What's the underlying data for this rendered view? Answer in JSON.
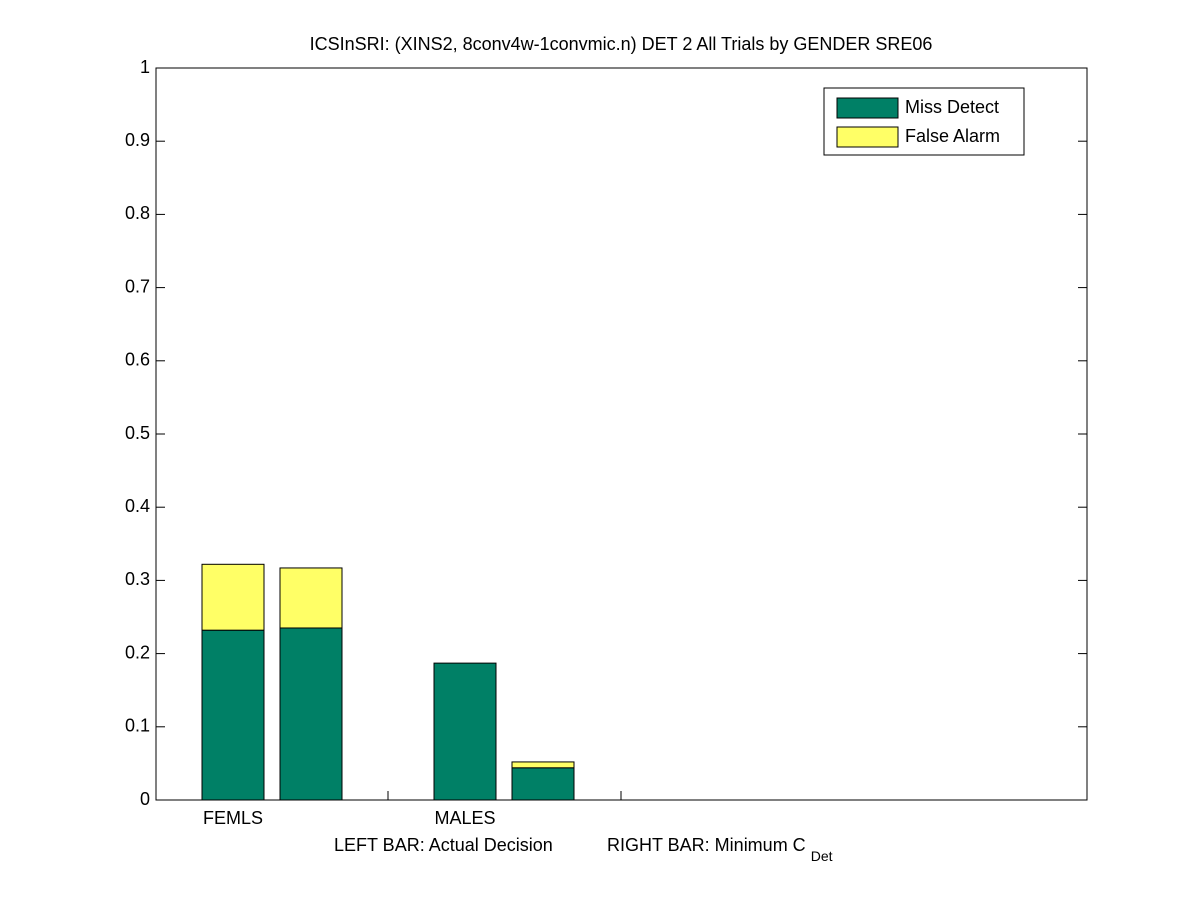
{
  "chart_data": {
    "type": "stacked_bar",
    "title": "ICSInSRI: (XINS2, 8conv4w-1convmic.n) DET 2 All Trials by GENDER SRE06",
    "categories": [
      "FEMLS",
      null,
      "MALES",
      null
    ],
    "series": [
      {
        "name": "Miss Detect",
        "color": "#008066",
        "values": [
          0.232,
          0.235,
          0.187,
          0.044
        ]
      },
      {
        "name": "False Alarm",
        "color": "#ffff66",
        "values": [
          0.09,
          0.082,
          0,
          0.008
        ]
      }
    ],
    "x_label": "LEFT BAR: Actual Decision",
    "x_label_2": "RIGHT BAR: Minimum C",
    "x_label_sub": "Det",
    "ylim": [
      0,
      1
    ],
    "yticks": [
      0,
      0.1,
      0.2,
      0.3,
      0.4,
      0.5,
      0.6,
      0.7,
      0.8,
      0.9,
      1
    ],
    "legend": "upper-right"
  }
}
